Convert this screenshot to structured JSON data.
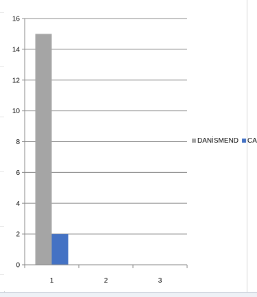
{
  "chart_data": {
    "type": "bar",
    "title": "",
    "xlabel": "",
    "ylabel": "",
    "categories": [
      "1",
      "2",
      "3"
    ],
    "series": [
      {
        "name": "DANİSMEND",
        "values": [
          15,
          0,
          0
        ],
        "color": "#a5a5a5"
      },
      {
        "name": "CANİK",
        "values": [
          2,
          0,
          0
        ],
        "color": "#4472c4"
      }
    ],
    "ylim": [
      0,
      16
    ],
    "yticks": [
      "0",
      "2",
      "4",
      "6",
      "8",
      "10",
      "12",
      "14",
      "16"
    ],
    "grid": true,
    "legend_position": "right"
  }
}
